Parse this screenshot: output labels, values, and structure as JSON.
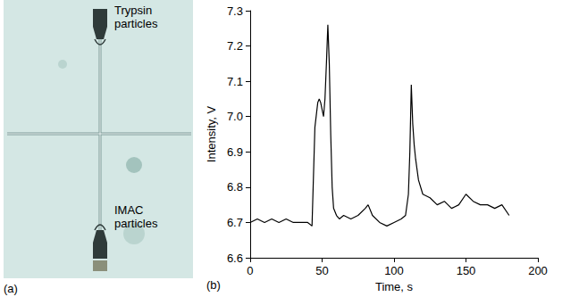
{
  "image_panel": {
    "label": "(a)",
    "texts": [
      "Trypsin particles",
      "IMAC particles"
    ]
  },
  "chart_data": {
    "type": "line",
    "title": "(b)",
    "x_label": "Time, s",
    "y_label": "Intensity, V",
    "x": [
      0,
      5,
      10,
      15,
      20,
      25,
      30,
      35,
      40,
      43,
      45,
      47,
      48,
      49,
      50,
      51,
      52,
      53,
      54,
      55,
      56,
      57,
      58,
      60,
      62,
      65,
      70,
      75,
      80,
      82,
      85,
      90,
      95,
      100,
      105,
      108,
      110,
      111,
      112,
      113,
      114,
      115,
      117,
      120,
      125,
      130,
      135,
      140,
      145,
      150,
      155,
      160,
      165,
      170,
      175,
      180
    ],
    "values": [
      6.7,
      6.71,
      6.7,
      6.71,
      6.7,
      6.71,
      6.7,
      6.7,
      6.7,
      6.69,
      6.97,
      7.04,
      7.05,
      7.04,
      7.02,
      7.0,
      7.05,
      7.15,
      7.26,
      7.15,
      6.95,
      6.8,
      6.74,
      6.72,
      6.71,
      6.72,
      6.71,
      6.72,
      6.74,
      6.75,
      6.72,
      6.7,
      6.69,
      6.7,
      6.71,
      6.72,
      6.78,
      6.9,
      7.09,
      6.98,
      6.92,
      6.88,
      6.82,
      6.78,
      6.77,
      6.75,
      6.76,
      6.74,
      6.75,
      6.78,
      6.76,
      6.75,
      6.75,
      6.74,
      6.75,
      6.72
    ],
    "color": "#000000",
    "xlim": [
      0,
      200
    ],
    "xticks": [
      0,
      50,
      100,
      150,
      200
    ],
    "ylim": [
      6.6,
      7.3
    ],
    "yticks": [
      6.6,
      6.7,
      6.8,
      6.9,
      {
        "value": 7,
        "label": "7.0"
      },
      7.1,
      7.2,
      7.3
    ],
    "grid": false
  }
}
